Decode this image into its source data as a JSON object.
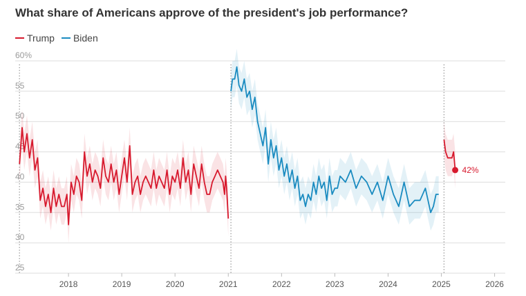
{
  "chart_data": {
    "type": "line",
    "title": "What share of Americans approve of the president's job performance?",
    "xlabel": "",
    "ylabel": "",
    "ylim": [
      25,
      60
    ],
    "xlim": [
      2017.0,
      2026.2
    ],
    "y_ticks": [
      25,
      30,
      35,
      40,
      45,
      50,
      55,
      60
    ],
    "y_tick_labels": [
      "25",
      "30",
      "35",
      "40",
      "45",
      "50",
      "55",
      "60%"
    ],
    "x_ticks": [
      2018,
      2019,
      2020,
      2021,
      2022,
      2023,
      2024,
      2025,
      2026
    ],
    "x_tick_labels": [
      "2018",
      "2019",
      "2020",
      "2021",
      "2022",
      "2023",
      "2024",
      "2025",
      "2026"
    ],
    "term_starts": [
      2017.08,
      2021.05,
      2025.05
    ],
    "colors": {
      "trump": "#d7192d",
      "biden": "#1a8bc0",
      "grid": "#dddddd",
      "divider": "#999999"
    },
    "end_label": "42%",
    "series": [
      {
        "name": "Trump",
        "band": 3,
        "x": [
          2017.08,
          2017.13,
          2017.17,
          2017.22,
          2017.27,
          2017.32,
          2017.37,
          2017.42,
          2017.47,
          2017.52,
          2017.57,
          2017.62,
          2017.67,
          2017.72,
          2017.77,
          2017.82,
          2017.87,
          2017.92,
          2017.97,
          2018.0,
          2018.05,
          2018.1,
          2018.15,
          2018.2,
          2018.25,
          2018.3,
          2018.35,
          2018.4,
          2018.45,
          2018.5,
          2018.55,
          2018.6,
          2018.65,
          2018.7,
          2018.75,
          2018.8,
          2018.85,
          2018.9,
          2018.95,
          2019.0,
          2019.05,
          2019.1,
          2019.15,
          2019.2,
          2019.25,
          2019.3,
          2019.35,
          2019.4,
          2019.45,
          2019.5,
          2019.55,
          2019.6,
          2019.65,
          2019.7,
          2019.75,
          2019.8,
          2019.85,
          2019.9,
          2019.95,
          2020.0,
          2020.05,
          2020.1,
          2020.15,
          2020.2,
          2020.25,
          2020.3,
          2020.35,
          2020.4,
          2020.45,
          2020.5,
          2020.55,
          2020.6,
          2020.65,
          2020.7,
          2020.75,
          2020.8,
          2020.85,
          2020.9,
          2020.93,
          2020.95,
          2020.97,
          2021.0
        ],
        "values": [
          43,
          49,
          45,
          48,
          44,
          47,
          42,
          44,
          37,
          39,
          36,
          38,
          35,
          39,
          36,
          38,
          36,
          36,
          38,
          33,
          40,
          38,
          41,
          40,
          37,
          45,
          41,
          43,
          40,
          42,
          41,
          39,
          44,
          41,
          40,
          43,
          40,
          42,
          38,
          41,
          44,
          40,
          46,
          38,
          40,
          41,
          38,
          40,
          41,
          40,
          39,
          42,
          39,
          41,
          40,
          39,
          42,
          38,
          41,
          40,
          42,
          39,
          44,
          40,
          42,
          38,
          43,
          41,
          39,
          43,
          40,
          38,
          38,
          40,
          41,
          42,
          41,
          40,
          38,
          41,
          39,
          34
        ]
      },
      {
        "name": "Biden",
        "band": 3,
        "x": [
          2021.05,
          2021.08,
          2021.12,
          2021.16,
          2021.2,
          2021.25,
          2021.3,
          2021.35,
          2021.4,
          2021.45,
          2021.5,
          2021.55,
          2021.6,
          2021.65,
          2021.7,
          2021.75,
          2021.8,
          2021.85,
          2021.9,
          2021.95,
          2022.0,
          2022.05,
          2022.1,
          2022.15,
          2022.2,
          2022.25,
          2022.3,
          2022.35,
          2022.4,
          2022.45,
          2022.5,
          2022.55,
          2022.6,
          2022.65,
          2022.7,
          2022.75,
          2022.8,
          2022.85,
          2022.9,
          2022.95,
          2023.0,
          2023.05,
          2023.1,
          2023.2,
          2023.3,
          2023.4,
          2023.5,
          2023.6,
          2023.7,
          2023.8,
          2023.9,
          2024.0,
          2024.1,
          2024.2,
          2024.3,
          2024.4,
          2024.5,
          2024.6,
          2024.7,
          2024.8,
          2024.85,
          2024.9,
          2024.95
        ],
        "values": [
          55,
          57,
          57,
          59,
          56,
          55,
          57,
          54,
          55,
          52,
          54,
          50,
          48,
          46,
          49,
          43,
          47,
          44,
          46,
          42,
          44,
          41,
          43,
          40,
          42,
          39,
          41,
          37,
          38,
          36,
          38,
          37,
          40,
          38,
          41,
          39,
          40,
          37,
          41,
          38,
          39,
          39,
          41,
          40,
          42,
          39,
          41,
          40,
          38,
          40,
          37,
          41,
          38,
          36,
          40,
          36,
          37,
          37,
          39,
          35,
          36,
          38,
          38
        ]
      },
      {
        "name": "Trump",
        "band": 3,
        "x": [
          2025.05,
          2025.08,
          2025.12,
          2025.16,
          2025.2,
          2025.23,
          2025.26
        ],
        "values": [
          47,
          45,
          44,
          44,
          44,
          45,
          42
        ]
      }
    ]
  }
}
